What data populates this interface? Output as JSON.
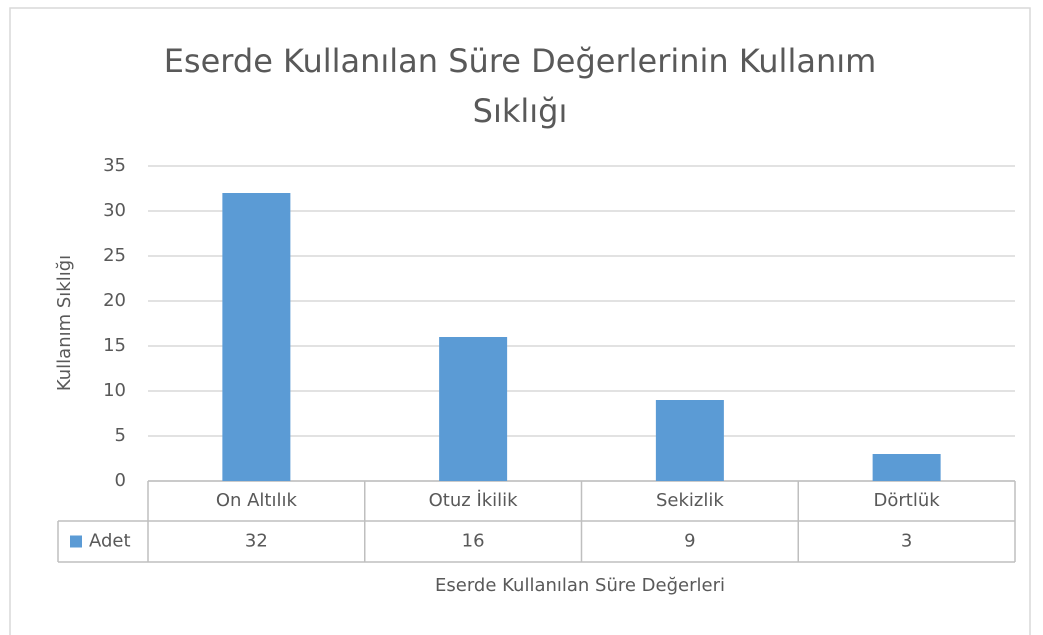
{
  "chart_data": {
    "type": "bar",
    "title": "Eserde Kullanılan Süre Değerlerinin Kullanım Sıklığı",
    "x_label": "Eserde Kullanılan Süre Değerleri",
    "y_label": "Kullanım Sıklığı",
    "categories": [
      "On Altılık",
      "Otuz İkilik",
      "Sekizlik",
      "Dörtlük"
    ],
    "series": [
      {
        "name": "Adet",
        "color": "#5b9bd5",
        "values": [
          32,
          16,
          9,
          3
        ]
      }
    ],
    "ylim": [
      0,
      35
    ],
    "yticks": [
      0,
      5,
      10,
      15,
      20,
      25,
      30,
      35
    ],
    "grid": true
  }
}
